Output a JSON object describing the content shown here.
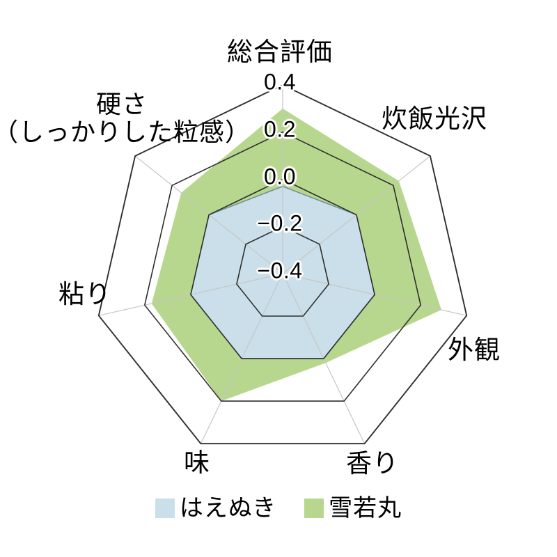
{
  "chart_data": {
    "type": "radar",
    "title": "",
    "categories": [
      "総合評価",
      "炊飯光沢",
      "外観",
      "香り",
      "味",
      "粘り",
      "硬さ\n（しっかりした粒感）"
    ],
    "series": [
      {
        "name": "はえぬき",
        "values": [
          -0.03,
          0.0,
          0.0,
          0.0,
          0.0,
          0.0,
          0.0
        ],
        "fill": "#cadfe9",
        "stroke": "#708b9b"
      },
      {
        "name": "雪若丸",
        "values": [
          0.3,
          0.23,
          0.29,
          0.02,
          0.2,
          0.17,
          0.15
        ],
        "fill": "#b7d78e",
        "stroke": "none"
      }
    ],
    "r_ticks": [
      "0.4",
      "0.2",
      "0.0",
      "−0.2",
      "−0.4"
    ],
    "r_tick_values": [
      0.4,
      0.2,
      0.0,
      -0.2,
      -0.4
    ],
    "r_range": [
      -0.4,
      0.4
    ],
    "grid": {
      "ring_color": "#2f2f2f",
      "outer_ring_color": "#2f2f2f",
      "spoke_color": "#c6c6c6",
      "background": "#ffffff",
      "legend_position": "bottom"
    }
  },
  "legend": {
    "items": [
      {
        "label": "はえぬき",
        "color": "#cadfe9"
      },
      {
        "label": "雪若丸",
        "color": "#b7d78e"
      }
    ]
  }
}
